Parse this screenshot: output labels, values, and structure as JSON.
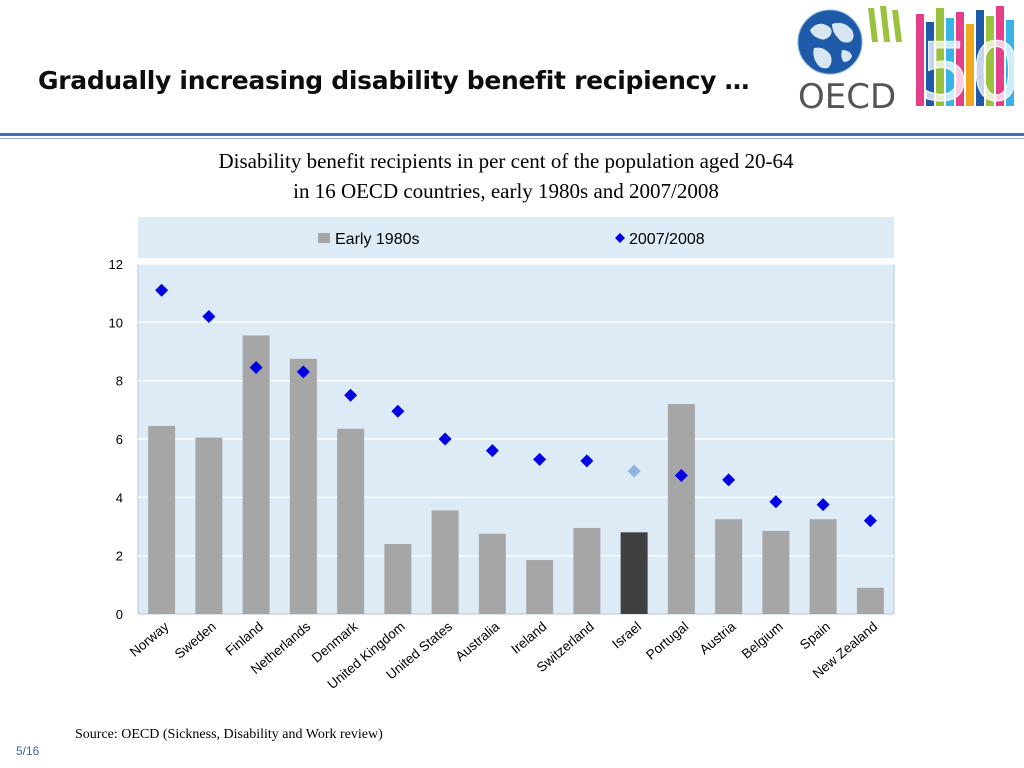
{
  "slide": {
    "title": "Gradually increasing disability benefit recipiency …",
    "source": "Source: OECD (Sickness, Disability and Work review)",
    "page": "5/16"
  },
  "logo": {
    "text": "OECD",
    "anniversary": "50",
    "colors": [
      "#1e5aa8",
      "#9ac23c",
      "#e53e8a",
      "#f2a81d",
      "#38b3e6"
    ]
  },
  "chart_data": {
    "type": "bar",
    "title_lines": [
      "Disability benefit recipients in per cent of the population aged 20-64",
      "in 16 OECD countries, early 1980s and 2007/2008"
    ],
    "categories": [
      "Norway",
      "Sweden",
      "Finland",
      "Netherlands",
      "Denmark",
      "United Kingdom",
      "United States",
      "Australia",
      "Ireland",
      "Switzerland",
      "Israel",
      "Portugal",
      "Austria",
      "Belgium",
      "Spain",
      "New Zealand"
    ],
    "series": [
      {
        "name": "Early 1980s",
        "mark": "bar",
        "color": "#a6a6a6",
        "values": [
          6.45,
          6.05,
          9.55,
          8.75,
          6.35,
          2.4,
          3.55,
          2.75,
          1.85,
          2.95,
          2.8,
          7.2,
          3.25,
          2.85,
          3.25,
          0.9
        ]
      },
      {
        "name": "2007/2008",
        "mark": "diamond",
        "color": "#0000e6",
        "values": [
          11.1,
          10.2,
          8.45,
          8.3,
          7.5,
          6.95,
          6.0,
          5.6,
          5.3,
          5.25,
          4.9,
          4.75,
          4.6,
          3.85,
          3.75,
          3.2
        ]
      }
    ],
    "highlight": {
      "category": "Israel",
      "bar_color": "#404040",
      "marker_color": "#8eb4e3"
    },
    "yticks": [
      0,
      2,
      4,
      6,
      8,
      10,
      12
    ],
    "ylim": [
      0,
      12
    ],
    "grid": true,
    "legend_position": "top",
    "background": "#ddebf7"
  }
}
